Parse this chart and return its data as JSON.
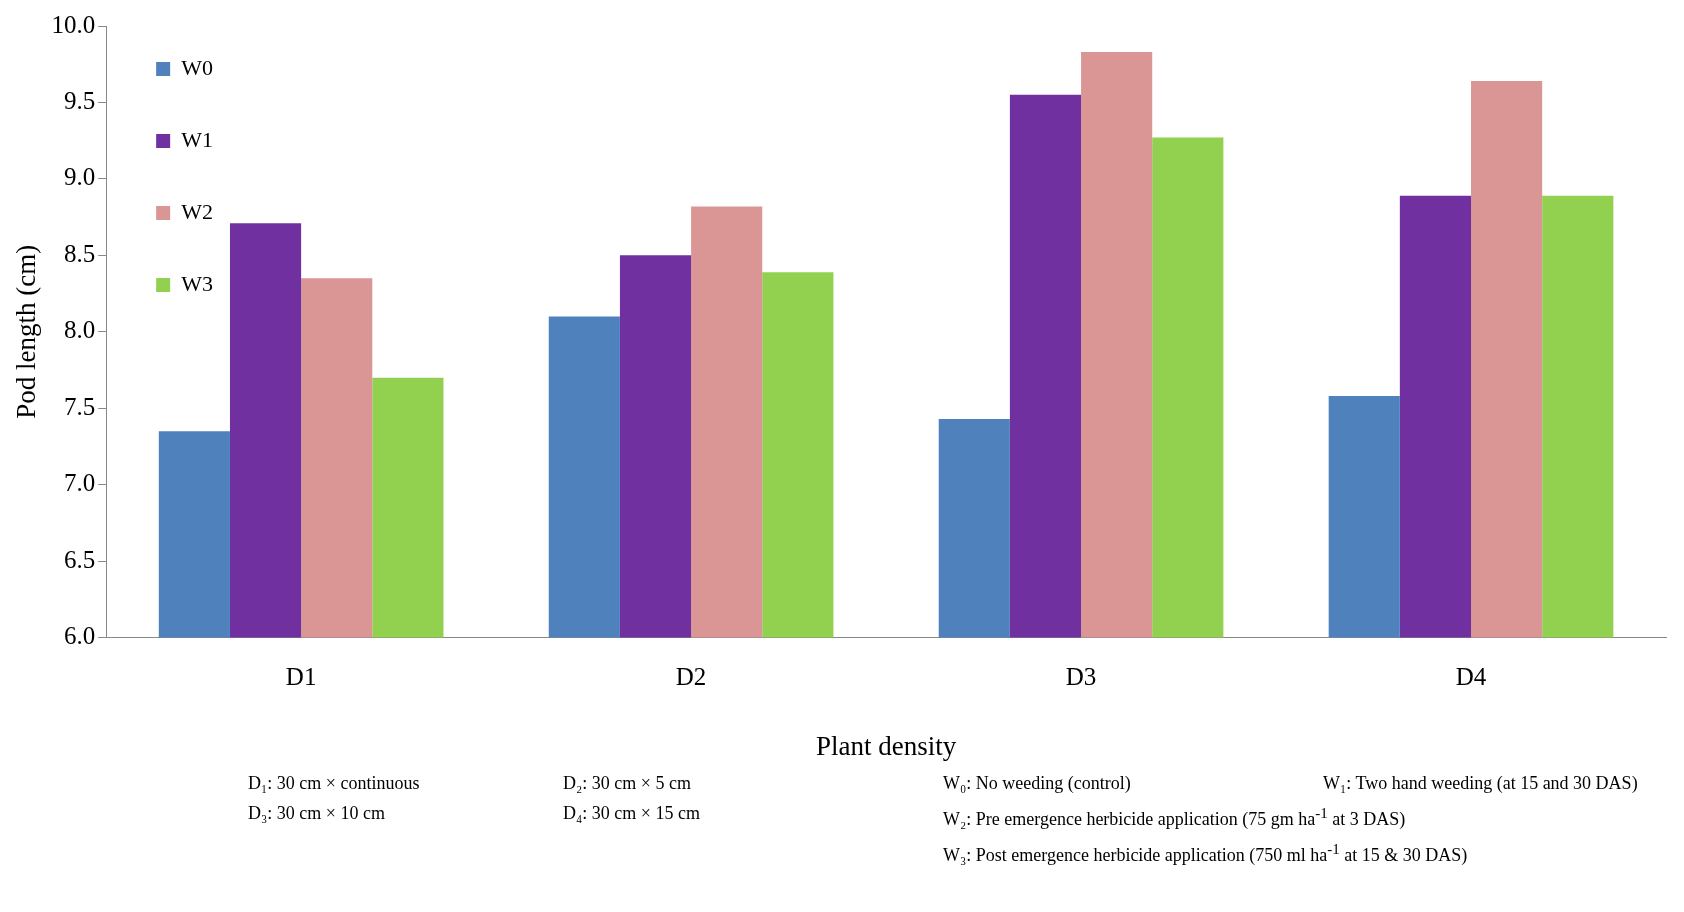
{
  "chart_data": {
    "type": "bar",
    "xlabel": "Plant density",
    "ylabel": "Pod length (cm)",
    "categories": [
      "D1",
      "D2",
      "D3",
      "D4"
    ],
    "series": [
      {
        "name": "W0",
        "color": "#4f81bd",
        "values": [
          7.35,
          8.1,
          7.43,
          7.58
        ]
      },
      {
        "name": "W1",
        "color": "#7030a0",
        "values": [
          8.71,
          8.5,
          9.55,
          8.89
        ]
      },
      {
        "name": "W2",
        "color": "#d99694",
        "values": [
          8.35,
          8.82,
          9.83,
          9.64
        ]
      },
      {
        "name": "W3",
        "color": "#92d050",
        "values": [
          7.7,
          8.39,
          9.27,
          8.89
        ]
      }
    ],
    "ylim": [
      6,
      10
    ],
    "yticks": [
      {
        "value": 6,
        "label": "6.0"
      },
      {
        "value": 6.5,
        "label": "6.5"
      },
      {
        "value": 7,
        "label": "7.0"
      },
      {
        "value": 7.5,
        "label": "7.5"
      },
      {
        "value": 8,
        "label": "8.0"
      },
      {
        "value": 8.5,
        "label": "8.5"
      },
      {
        "value": 9,
        "label": "9.0"
      },
      {
        "value": 9.5,
        "label": "9.5"
      },
      {
        "value": 10,
        "label": "10.0"
      }
    ],
    "grid": false,
    "legend": "top left",
    "annotations": [
      "D₁: 30 cm × continuous",
      "D₂: 30 cm × 5 cm",
      "D₃: 30 cm × 10 cm",
      "D₄: 30 cm × 15 cm",
      "W₀: No weeding (control)",
      "W₁: Two hand weeding (at 15 and 30 DAS)",
      "W₂: Pre emergence herbicide application (75 gm ha$^{-1}$ at 3 DAS)",
      "W₃: Post emergence herbicide application (750 ml ha$^{-1}$ at 15 & 30 DAS)"
    ]
  }
}
